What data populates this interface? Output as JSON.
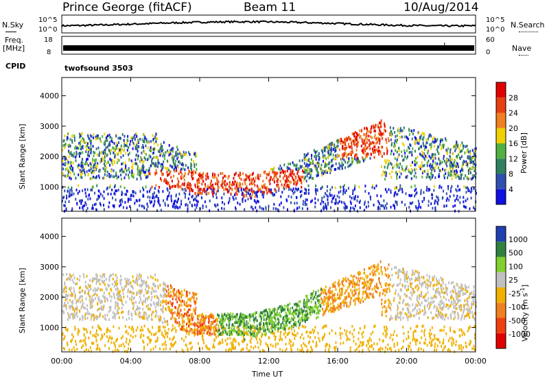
{
  "header": {
    "station": "Prince George (fitACF)",
    "beam": "Beam 11",
    "date": "10/Aug/2014"
  },
  "summary": {
    "nsky_label": "N.Sky",
    "nsearch_label": "N.Search",
    "noise_ticks": [
      "10^5",
      "10^0"
    ],
    "freq_label_line1": "Freq.",
    "freq_label_line2": "[MHz]",
    "freq_ticks": [
      "18",
      "8"
    ],
    "nave_label": "Nave",
    "nave_ticks": [
      "60",
      "0"
    ],
    "cpid_label": "CPID",
    "cpid_value": "twofsound 3503"
  },
  "colors": {
    "power": [
      "#1010e0",
      "#3050b0",
      "#308060",
      "#50b040",
      "#f0d000",
      "#f08020",
      "#e84010",
      "#e00000"
    ],
    "velocity": [
      "#e00000",
      "#f04010",
      "#f08020",
      "#f0b000",
      "#c0c0c0",
      "#80d030",
      "#308040",
      "#2040b0"
    ]
  },
  "chart_data": [
    {
      "type": "heatmap",
      "name": "power-panel",
      "x_ticks": [
        "00:00",
        "04:00",
        "08:00",
        "12:00",
        "16:00",
        "20:00",
        "00:00"
      ],
      "x_range_hours": [
        0,
        24
      ],
      "ylabel": "Slant Range [km]",
      "y_ticks": [
        1000,
        2000,
        3000,
        4000
      ],
      "ylim": [
        200,
        4600
      ],
      "colorbar_label": "Power [dB]",
      "colorbar_ticks": [
        "4",
        "8",
        "12",
        "16",
        "20",
        "24",
        "28"
      ],
      "bands": [
        {
          "t0": 0.0,
          "t1": 5.5,
          "r0": 1300,
          "r1": 2800
        },
        {
          "t0": 5.5,
          "t1": 7.8,
          "r0": 800,
          "r1": 2600
        },
        {
          "t0": 8.5,
          "t1": 10.5,
          "r0": 800,
          "r1": 1500
        },
        {
          "t0": 11.0,
          "t1": 14.0,
          "r0": 700,
          "r1": 1500
        },
        {
          "t0": 14.0,
          "t1": 18.5,
          "r0": 1200,
          "r1": 2800
        },
        {
          "t0": 18.5,
          "t1": 24.0,
          "r0": 1300,
          "r1": 3200
        }
      ]
    },
    {
      "type": "heatmap",
      "name": "velocity-panel",
      "x_ticks": [
        "00:00",
        "04:00",
        "08:00",
        "12:00",
        "16:00",
        "20:00",
        "00:00"
      ],
      "xlabel": "Time UT",
      "ylabel": "Slant Range [km]",
      "y_ticks": [
        1000,
        2000,
        3000,
        4000
      ],
      "ylim": [
        200,
        4600
      ],
      "colorbar_label": "Velocity [m s",
      "colorbar_sup": "-1",
      "colorbar_ticks": [
        "1000",
        "500",
        "100",
        "25",
        "-25",
        "-100",
        "-500",
        "-1000"
      ]
    }
  ]
}
